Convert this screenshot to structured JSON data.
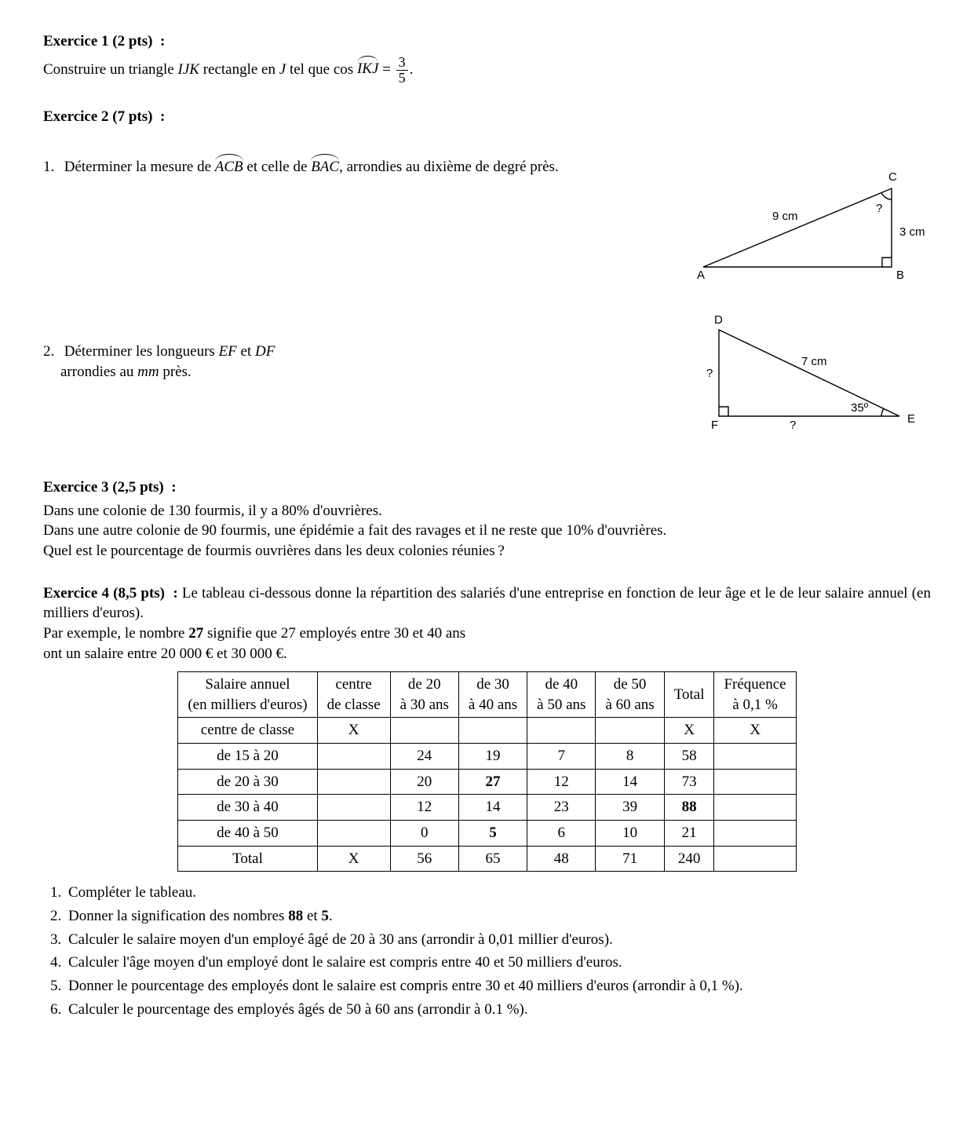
{
  "ex1": {
    "title": "Exercice 1 (2 pts)  :",
    "line_a": "Construire un triangle ",
    "tri": "IJK",
    "line_b": " rectangle en ",
    "vertex": "J",
    "line_c": " tel que cos ",
    "angle": "IKJ",
    "eq": " = ",
    "frac_num": "3",
    "frac_den": "5",
    "period": "."
  },
  "ex2": {
    "title": "Exercice 2 (7 pts)  :",
    "q1_num": "1.",
    "q1_a": "Déterminer la mesure de ",
    "q1_angle1": "ACB",
    "q1_b": " et celle de ",
    "q1_angle2": "BAC",
    "q1_c": ", arrondies au dixième de degré près.",
    "q2_num": "2.",
    "q2_a": "Déterminer les longueurs ",
    "q2_seg1": "EF",
    "q2_b": " et ",
    "q2_seg2": "DF",
    "q2_c": " arrondies au ",
    "q2_unit": "mm",
    "q2_d": " près.",
    "fig1": {
      "A": "A",
      "B": "B",
      "C": "C",
      "hyp": "9 cm",
      "side": "3 cm",
      "qmark": "?",
      "line_color": "#000000",
      "text_color": "#000000",
      "line_width": 1.4
    },
    "fig2": {
      "D": "D",
      "E": "E",
      "F": "F",
      "hyp": "7 cm",
      "angleE": "35º",
      "qmark": "?",
      "line_color": "#000000",
      "text_color": "#000000",
      "line_width": 1.4
    }
  },
  "ex3": {
    "title": "Exercice 3 (2,5 pts)  :",
    "p1": "Dans une colonie de 130 fourmis, il y a 80% d'ouvrières.",
    "p2": "Dans une autre colonie de 90 fourmis, une épidémie a fait des ravages et il ne reste que 10% d'ouvrières.",
    "p3": "Quel est le pourcentage de fourmis ouvrières dans les deux colonies réunies ?"
  },
  "ex4": {
    "title": "Exercice 4 (8,5 pts)  : ",
    "intro_a": "Le tableau ci-dessous donne la répartition des salariés d'une entreprise en fonction de leur âge et le de leur salaire annuel (en milliers d'euros).",
    "intro_b1": "Par exemple, le nombre ",
    "intro_b_bold": "27",
    "intro_b2": " signifie que 27 employés entre 30 et 40 ans",
    "intro_c": "ont un salaire entre 20 000 €  et 30 000 €.",
    "table": {
      "header1": [
        "Salaire annuel",
        "centre",
        "de 20",
        "de 30",
        "de 40",
        "de 50",
        "Total",
        "Fréquence"
      ],
      "header2": [
        "(en milliers d'euros)",
        "de classe",
        "à 30 ans",
        "à 40 ans",
        "à 50 ans",
        "à 60 ans",
        "",
        "à 0,1 %"
      ],
      "rows": [
        {
          "label": "centre de classe",
          "cells": [
            "X",
            "",
            "",
            "",
            "",
            "X",
            "X"
          ],
          "bold": [
            false,
            false,
            false,
            false,
            false,
            false,
            false
          ]
        },
        {
          "label": "de 15 à 20",
          "cells": [
            "",
            "24",
            "19",
            "7",
            "8",
            "58",
            ""
          ],
          "bold": [
            false,
            false,
            false,
            false,
            false,
            false,
            false
          ]
        },
        {
          "label": "de 20 à 30",
          "cells": [
            "",
            "20",
            "27",
            "12",
            "14",
            "73",
            ""
          ],
          "bold": [
            false,
            false,
            true,
            false,
            false,
            false,
            false
          ]
        },
        {
          "label": "de 30 à 40",
          "cells": [
            "",
            "12",
            "14",
            "23",
            "39",
            "88",
            ""
          ],
          "bold": [
            false,
            false,
            false,
            false,
            false,
            true,
            false
          ]
        },
        {
          "label": "de 40 à 50",
          "cells": [
            "",
            "0",
            "5",
            "6",
            "10",
            "21",
            ""
          ],
          "bold": [
            false,
            false,
            true,
            false,
            false,
            false,
            false
          ]
        },
        {
          "label": "Total",
          "cells": [
            "X",
            "56",
            "65",
            "48",
            "71",
            "240",
            ""
          ],
          "bold": [
            false,
            false,
            false,
            false,
            false,
            false,
            false
          ]
        }
      ]
    },
    "questions": [
      "Compléter le tableau.",
      null,
      "Calculer le salaire moyen d'un employé âgé de 20 à 30 ans (arrondir à 0,01 millier d'euros).",
      "Calculer l'âge moyen d'un employé dont le salaire est compris entre 40 et 50 milliers d'euros.",
      "Donner le pourcentage des employés dont le salaire est compris entre 30 et 40 milliers d'euros (arrondir à 0,1 %).",
      "Calculer le pourcentage des employés âgés de 50 à 60 ans (arrondir à 0.1 %)."
    ],
    "q2_a": "Donner la signification des nombres ",
    "q2_b1": "88",
    "q2_mid": " et ",
    "q2_b2": "5",
    "q2_end": "."
  }
}
